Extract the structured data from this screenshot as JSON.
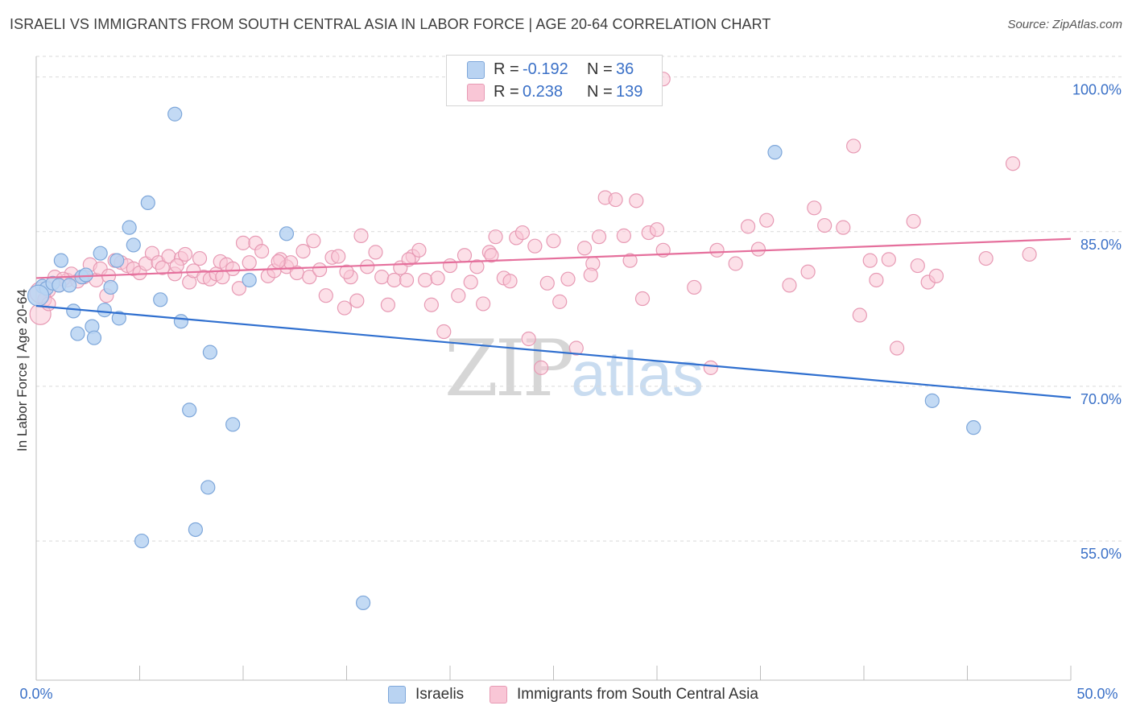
{
  "title": "ISRAELI VS IMMIGRANTS FROM SOUTH CENTRAL ASIA IN LABOR FORCE | AGE 20-64 CORRELATION CHART",
  "source": "Source: ZipAtlas.com",
  "watermark": {
    "zip": "ZIP",
    "atlas": "atlas"
  },
  "colors": {
    "blue_fill": "#b9d3f2",
    "blue_stroke": "#7ea7da",
    "blue_line": "#2f6fcf",
    "pink_fill": "#f9c6d6",
    "pink_stroke": "#e79ab4",
    "pink_line": "#e56f9c",
    "tick_label": "#3a70c7",
    "grid": "#d9d9d9"
  },
  "legend": {
    "rows": [
      {
        "label_r": "R =",
        "r": "-0.192",
        "label_n": "N =",
        "n": "36"
      },
      {
        "label_r": "R =",
        "r": "0.238",
        "label_n": "N =",
        "n": "139"
      }
    ]
  },
  "chart_data": {
    "type": "scatter",
    "xlabel": "",
    "ylabel": "In Labor Force | Age 20-64",
    "xlim": [
      0,
      50
    ],
    "ylim": [
      41.5,
      102
    ],
    "x_tick_labels": [
      "0.0%",
      "50.0%"
    ],
    "y_ticks": [
      55,
      70,
      85,
      100
    ],
    "y_tick_labels": [
      "55.0%",
      "70.0%",
      "85.0%",
      "100.0%"
    ],
    "series": [
      {
        "name": "Israelis",
        "color": "blue",
        "trend": {
          "x": [
            0,
            50
          ],
          "y": [
            77.8,
            68.9
          ]
        },
        "points": [
          [
            0.3,
            79.7
          ],
          [
            0.5,
            79.5
          ],
          [
            0.8,
            80.0
          ],
          [
            1.1,
            79.8
          ],
          [
            1.2,
            82.2
          ],
          [
            1.6,
            79.8
          ],
          [
            1.8,
            77.3
          ],
          [
            2.0,
            75.1
          ],
          [
            2.2,
            80.6
          ],
          [
            2.4,
            80.8
          ],
          [
            2.7,
            75.8
          ],
          [
            2.8,
            74.7
          ],
          [
            3.1,
            82.9
          ],
          [
            3.3,
            77.4
          ],
          [
            3.6,
            79.6
          ],
          [
            3.9,
            82.2
          ],
          [
            4.0,
            76.6
          ],
          [
            4.5,
            85.4
          ],
          [
            4.7,
            83.7
          ],
          [
            5.1,
            55.0
          ],
          [
            5.4,
            87.8
          ],
          [
            6.0,
            78.4
          ],
          [
            6.7,
            96.4
          ],
          [
            7.0,
            76.3
          ],
          [
            7.4,
            67.7
          ],
          [
            7.7,
            56.1
          ],
          [
            8.3,
            60.2
          ],
          [
            8.4,
            73.3
          ],
          [
            9.5,
            66.3
          ],
          [
            10.3,
            80.3
          ],
          [
            12.1,
            84.8
          ],
          [
            15.8,
            49.0
          ],
          [
            35.7,
            92.7
          ],
          [
            43.3,
            68.6
          ],
          [
            45.3,
            66.0
          ],
          [
            0.1,
            78.8
          ]
        ]
      },
      {
        "name": "Immigrants from South Central Asia",
        "color": "pink",
        "trend": {
          "x": [
            0,
            50
          ],
          "y": [
            80.5,
            84.3
          ]
        },
        "points": [
          [
            0.2,
            77.0
          ],
          [
            0.4,
            78.4
          ],
          [
            0.6,
            79.3
          ],
          [
            0.9,
            80.6
          ],
          [
            1.1,
            79.8
          ],
          [
            1.5,
            80.3
          ],
          [
            1.7,
            80.9
          ],
          [
            2.0,
            80.2
          ],
          [
            2.3,
            80.6
          ],
          [
            2.6,
            81.8
          ],
          [
            2.9,
            80.3
          ],
          [
            3.1,
            81.4
          ],
          [
            3.4,
            78.8
          ],
          [
            3.8,
            82.2
          ],
          [
            4.1,
            82.0
          ],
          [
            4.4,
            81.7
          ],
          [
            4.7,
            81.4
          ],
          [
            5.0,
            81.0
          ],
          [
            5.3,
            81.9
          ],
          [
            5.6,
            82.9
          ],
          [
            5.9,
            82.0
          ],
          [
            6.1,
            81.5
          ],
          [
            6.4,
            82.6
          ],
          [
            6.7,
            80.9
          ],
          [
            7.0,
            82.4
          ],
          [
            7.2,
            82.8
          ],
          [
            7.4,
            80.1
          ],
          [
            7.6,
            81.2
          ],
          [
            7.9,
            82.4
          ],
          [
            8.1,
            80.6
          ],
          [
            8.4,
            80.4
          ],
          [
            8.7,
            80.9
          ],
          [
            8.9,
            82.1
          ],
          [
            9.2,
            81.8
          ],
          [
            9.5,
            81.4
          ],
          [
            9.8,
            79.5
          ],
          [
            10.0,
            83.9
          ],
          [
            10.3,
            82.0
          ],
          [
            10.6,
            83.9
          ],
          [
            10.9,
            83.1
          ],
          [
            11.2,
            80.7
          ],
          [
            11.5,
            81.2
          ],
          [
            11.8,
            82.3
          ],
          [
            12.1,
            81.6
          ],
          [
            12.3,
            82.0
          ],
          [
            12.6,
            81.0
          ],
          [
            12.9,
            83.1
          ],
          [
            13.2,
            80.6
          ],
          [
            13.4,
            84.1
          ],
          [
            13.7,
            81.3
          ],
          [
            14.0,
            78.8
          ],
          [
            14.3,
            82.5
          ],
          [
            14.6,
            82.6
          ],
          [
            14.9,
            77.6
          ],
          [
            15.2,
            80.6
          ],
          [
            15.5,
            78.3
          ],
          [
            15.7,
            84.6
          ],
          [
            16.0,
            81.6
          ],
          [
            16.4,
            83.0
          ],
          [
            16.7,
            80.6
          ],
          [
            17.0,
            77.9
          ],
          [
            17.3,
            80.3
          ],
          [
            17.6,
            81.5
          ],
          [
            17.9,
            80.3
          ],
          [
            18.2,
            82.6
          ],
          [
            18.5,
            83.2
          ],
          [
            18.8,
            80.3
          ],
          [
            19.1,
            77.9
          ],
          [
            19.4,
            80.5
          ],
          [
            19.7,
            75.3
          ],
          [
            20.0,
            81.7
          ],
          [
            20.4,
            78.8
          ],
          [
            20.7,
            82.7
          ],
          [
            21.0,
            80.1
          ],
          [
            21.3,
            81.6
          ],
          [
            21.6,
            78.0
          ],
          [
            21.9,
            83.0
          ],
          [
            22.2,
            84.5
          ],
          [
            22.6,
            80.5
          ],
          [
            22.9,
            80.2
          ],
          [
            23.2,
            84.4
          ],
          [
            23.5,
            84.9
          ],
          [
            23.8,
            74.6
          ],
          [
            24.1,
            83.6
          ],
          [
            24.4,
            71.8
          ],
          [
            24.7,
            80.0
          ],
          [
            25.0,
            84.1
          ],
          [
            25.3,
            78.2
          ],
          [
            25.7,
            80.4
          ],
          [
            26.1,
            73.7
          ],
          [
            26.5,
            83.4
          ],
          [
            26.9,
            81.9
          ],
          [
            27.2,
            84.5
          ],
          [
            27.5,
            88.3
          ],
          [
            28.0,
            88.1
          ],
          [
            28.4,
            84.6
          ],
          [
            28.7,
            82.2
          ],
          [
            29.0,
            88.0
          ],
          [
            29.3,
            78.5
          ],
          [
            29.6,
            84.9
          ],
          [
            30.0,
            85.2
          ],
          [
            30.3,
            83.2
          ],
          [
            31.8,
            79.6
          ],
          [
            32.6,
            71.8
          ],
          [
            32.9,
            83.2
          ],
          [
            33.8,
            81.9
          ],
          [
            34.4,
            85.5
          ],
          [
            34.9,
            83.3
          ],
          [
            35.3,
            86.1
          ],
          [
            36.4,
            79.8
          ],
          [
            37.3,
            81.1
          ],
          [
            37.6,
            87.3
          ],
          [
            38.1,
            85.6
          ],
          [
            39.0,
            85.4
          ],
          [
            39.5,
            93.3
          ],
          [
            39.8,
            76.9
          ],
          [
            40.3,
            82.2
          ],
          [
            40.6,
            80.3
          ],
          [
            41.2,
            82.3
          ],
          [
            41.6,
            73.7
          ],
          [
            42.4,
            86.0
          ],
          [
            42.6,
            81.7
          ],
          [
            43.1,
            80.1
          ],
          [
            43.5,
            80.7
          ],
          [
            45.9,
            82.4
          ],
          [
            47.2,
            91.6
          ],
          [
            48.0,
            82.8
          ],
          [
            30.3,
            99.8
          ],
          [
            0.2,
            79.1
          ],
          [
            0.6,
            78.0
          ],
          [
            1.3,
            80.4
          ],
          [
            3.5,
            80.7
          ],
          [
            6.8,
            81.7
          ],
          [
            9.0,
            80.6
          ],
          [
            11.7,
            82.1
          ],
          [
            15.0,
            81.1
          ],
          [
            18.0,
            82.3
          ],
          [
            22.0,
            82.7
          ],
          [
            26.8,
            80.8
          ]
        ]
      }
    ]
  },
  "bottom_legend": [
    "Israelis",
    "Immigrants from South Central Asia"
  ]
}
